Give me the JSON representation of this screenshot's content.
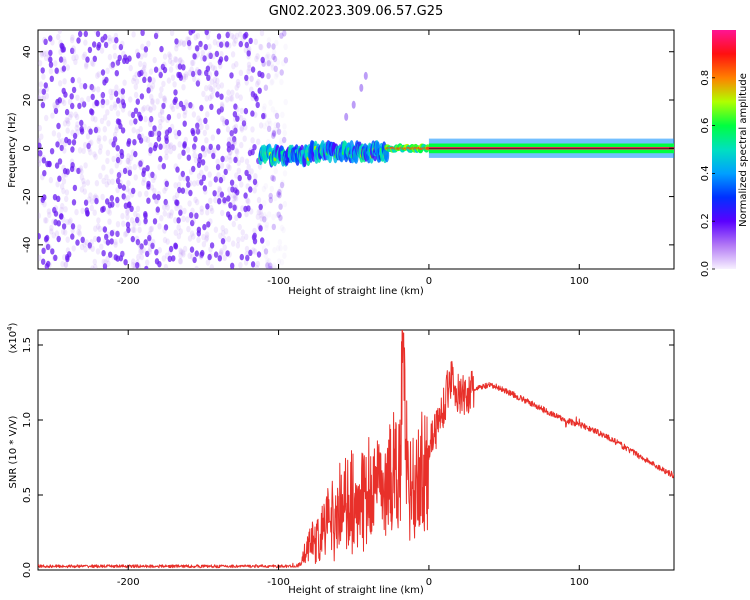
{
  "title": "GN02.2023.309.06.57.G25",
  "colors": {
    "background": "#ffffff",
    "snr_line": "#e8302a",
    "noise_dots": "#7a2cf0",
    "colorbar_stops": [
      "#f7f0ff",
      "#8a2be2",
      "#0000ff",
      "#00bfff",
      "#00ff7f",
      "#7fff00",
      "#ffff00",
      "#ff7f00",
      "#ff0000",
      "#ff1493"
    ]
  },
  "chart_data": [
    {
      "type": "heatmap",
      "xlabel": "Height of straight line (km)",
      "ylabel": "Frequency (Hz)",
      "xlim": [
        -260,
        163
      ],
      "ylim": [
        -50,
        49
      ],
      "xticks": [
        -200,
        -100,
        0,
        100
      ],
      "xtick_labels": [
        "-200",
        "-100",
        "0",
        "100"
      ],
      "yticks": [
        -40,
        -20,
        0,
        20,
        40
      ],
      "ytick_labels": [
        "-40",
        "-20",
        "0",
        "20",
        "40"
      ],
      "colorbar": {
        "label": "Normalized spectral amplitude",
        "range": [
          0.0,
          1.0
        ],
        "ticks": [
          0.0,
          0.2,
          0.4,
          0.6,
          0.8
        ],
        "tick_labels": [
          "0.0",
          "0.2",
          "0.4",
          "0.6",
          "0.8"
        ]
      },
      "regions": {
        "noise_scatter": {
          "x_range": [
            -260,
            -95
          ],
          "y_range": [
            -50,
            49
          ],
          "amplitude": 0.1
        },
        "turbulent_band": {
          "x_range": [
            -112,
            -28
          ],
          "center_hz": -3,
          "width_hz": 6,
          "amplitude_range": [
            0.2,
            0.55
          ]
        },
        "transition_band": {
          "x_range": [
            -28,
            0
          ],
          "center_hz": 0,
          "width_hz": 3,
          "amplitude": 0.85
        },
        "stable_line": {
          "x_range": [
            0,
            163
          ],
          "center_hz": 0,
          "width_hz": 2,
          "amplitude": 0.95
        },
        "spurious_streak": [
          [
            -55,
            13
          ],
          [
            -50,
            18
          ],
          [
            -45,
            25
          ],
          [
            -42,
            30
          ]
        ]
      }
    },
    {
      "type": "line",
      "xlabel": "Height of straight line (km)",
      "ylabel": "SNR (10 * V/V)",
      "yscale_label": "(x10",
      "yscale_exponent": "4",
      "yscale_suffix": ")",
      "xlim": [
        -260,
        163
      ],
      "ylim": [
        0,
        1.6
      ],
      "xticks": [
        -200,
        -100,
        0,
        100
      ],
      "xtick_labels": [
        "-200",
        "-100",
        "0",
        "100"
      ],
      "yticks": [
        0.0,
        0.5,
        1.0,
        1.5
      ],
      "ytick_labels": [
        "0.0",
        "0.5",
        "1.0",
        "1.5"
      ],
      "series": [
        {
          "x": [
            -260,
            -200,
            -150,
            -100,
            -90,
            -85,
            -80,
            -70,
            -60,
            -50,
            -40,
            -30,
            -20,
            -17,
            -15,
            -10,
            -5,
            0,
            5,
            10,
            15,
            20,
            25,
            30,
            35,
            40,
            45,
            50,
            60,
            70,
            80,
            90,
            100,
            110,
            120,
            130,
            140,
            150,
            163
          ],
          "values": [
            0.02,
            0.03,
            0.03,
            0.02,
            0.02,
            0.05,
            0.2,
            0.3,
            0.45,
            0.55,
            0.6,
            0.7,
            0.75,
            1.55,
            0.85,
            0.6,
            0.75,
            0.85,
            0.95,
            1.1,
            1.3,
            1.15,
            1.17,
            1.2,
            1.22,
            1.23,
            1.22,
            1.2,
            1.15,
            1.1,
            1.05,
            1.0,
            0.97,
            0.93,
            0.88,
            0.82,
            0.76,
            0.7,
            0.63
          ]
        }
      ]
    }
  ]
}
